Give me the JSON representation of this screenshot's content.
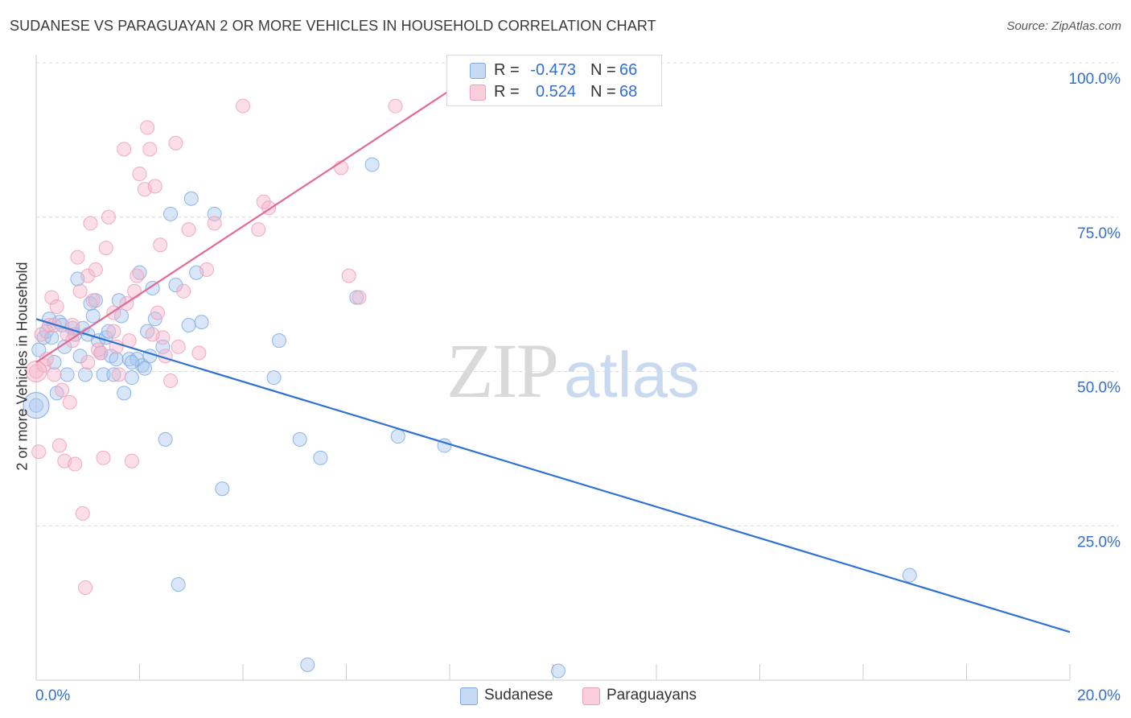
{
  "title": "SUDANESE VS PARAGUAYAN 2 OR MORE VEHICLES IN HOUSEHOLD CORRELATION CHART",
  "source": "Source: ZipAtlas.com",
  "watermark": {
    "zip": "ZIP",
    "atlas": "atlas"
  },
  "legend": {
    "rows": [
      {
        "r_label": "R =",
        "r_value": "-0.473",
        "n_label": "N =",
        "n_value": "66",
        "color": "#a9c8ef"
      },
      {
        "r_label": "R =",
        "r_value": "0.524",
        "n_label": "N =",
        "n_value": "68",
        "color": "#f7b6c9"
      }
    ]
  },
  "bottom_legend": [
    {
      "label": "Sudanese",
      "color": "#a9c8ef"
    },
    {
      "label": "Paraguayans",
      "color": "#f7b6c9"
    }
  ],
  "colors": {
    "blue_line": "#2f72d2",
    "pink_line": "#e46a94",
    "blue_fill": "#a9c8ef",
    "pink_fill": "#f7b6c9",
    "tick_label": "#2f6fd6",
    "grid": "#dcdcdc"
  },
  "chart_data": {
    "type": "scatter",
    "title": "SUDANESE VS PARAGUAYAN 2 OR MORE VEHICLES IN HOUSEHOLD CORRELATION CHART",
    "xlabel": "",
    "ylabel": "2 or more Vehicles in Household",
    "xlim": [
      0,
      20
    ],
    "ylim": [
      0,
      100
    ],
    "x_tick_labels": [
      "0.0%",
      "20.0%"
    ],
    "y_ticks": [
      25,
      50,
      75,
      100
    ],
    "y_tick_labels": [
      "25.0%",
      "50.0%",
      "75.0%",
      "100.0%"
    ],
    "series": [
      {
        "name": "Sudanese",
        "r": -0.473,
        "n": 66,
        "trend": {
          "x": [
            0,
            20
          ],
          "y": [
            58.5,
            7.8
          ]
        },
        "points": [
          [
            0.05,
            53.5
          ],
          [
            0.15,
            55.5
          ],
          [
            0.2,
            56.5
          ],
          [
            0.25,
            58.5
          ],
          [
            0.3,
            55.5
          ],
          [
            0.35,
            51.5
          ],
          [
            0.4,
            46.5
          ],
          [
            0.45,
            58
          ],
          [
            0.5,
            57.5
          ],
          [
            0.55,
            54
          ],
          [
            0.6,
            49.5
          ],
          [
            0.7,
            57
          ],
          [
            0.75,
            56
          ],
          [
            0.8,
            65
          ],
          [
            0.85,
            52.5
          ],
          [
            0.9,
            57
          ],
          [
            0.95,
            49.5
          ],
          [
            1.0,
            56
          ],
          [
            1.05,
            61
          ],
          [
            1.1,
            59
          ],
          [
            1.15,
            61.5
          ],
          [
            1.2,
            55
          ],
          [
            1.25,
            53
          ],
          [
            1.3,
            49.5
          ],
          [
            1.35,
            55.5
          ],
          [
            1.4,
            56.5
          ],
          [
            1.45,
            52.5
          ],
          [
            1.5,
            49.5
          ],
          [
            1.55,
            52
          ],
          [
            1.6,
            61.5
          ],
          [
            1.65,
            59
          ],
          [
            1.7,
            46.5
          ],
          [
            1.8,
            52
          ],
          [
            1.85,
            49
          ],
          [
            1.95,
            52
          ],
          [
            2.0,
            66
          ],
          [
            2.05,
            51
          ],
          [
            2.1,
            50.5
          ],
          [
            2.15,
            56.5
          ],
          [
            2.2,
            52.5
          ],
          [
            2.25,
            63.5
          ],
          [
            2.3,
            58.5
          ],
          [
            2.45,
            54
          ],
          [
            2.5,
            39
          ],
          [
            2.6,
            75.5
          ],
          [
            2.7,
            64
          ],
          [
            2.95,
            57.5
          ],
          [
            3.0,
            78
          ],
          [
            3.1,
            66
          ],
          [
            3.2,
            58
          ],
          [
            3.45,
            75.5
          ],
          [
            3.6,
            31
          ],
          [
            2.75,
            15.5
          ],
          [
            4.6,
            49
          ],
          [
            4.7,
            55
          ],
          [
            5.1,
            39
          ],
          [
            5.25,
            2.5
          ],
          [
            5.5,
            36
          ],
          [
            6.2,
            62
          ],
          [
            6.5,
            83.5
          ],
          [
            7.0,
            39.5
          ],
          [
            7.9,
            38
          ],
          [
            10.1,
            1.5
          ],
          [
            16.9,
            17
          ],
          [
            0.0,
            44.5
          ],
          [
            1.85,
            51.5
          ]
        ]
      },
      {
        "name": "Paraguayans",
        "r": 0.524,
        "n": 68,
        "trend": {
          "x": [
            0,
            8
          ],
          "y": [
            51.5,
            95.5
          ]
        },
        "points": [
          [
            0.0,
            50
          ],
          [
            0.05,
            37
          ],
          [
            0.1,
            56
          ],
          [
            0.15,
            51
          ],
          [
            0.2,
            52
          ],
          [
            0.25,
            57.5
          ],
          [
            0.3,
            62
          ],
          [
            0.35,
            49.5
          ],
          [
            0.4,
            60.5
          ],
          [
            0.45,
            38
          ],
          [
            0.5,
            47
          ],
          [
            0.55,
            35.5
          ],
          [
            0.6,
            56
          ],
          [
            0.65,
            45
          ],
          [
            0.7,
            57.5
          ],
          [
            0.75,
            35
          ],
          [
            0.8,
            68.5
          ],
          [
            0.85,
            63
          ],
          [
            0.9,
            27
          ],
          [
            0.95,
            15
          ],
          [
            1.0,
            65.5
          ],
          [
            1.05,
            74
          ],
          [
            1.1,
            61.5
          ],
          [
            1.15,
            66.5
          ],
          [
            1.2,
            53.5
          ],
          [
            1.25,
            53
          ],
          [
            1.3,
            36
          ],
          [
            1.35,
            70
          ],
          [
            1.4,
            75
          ],
          [
            1.5,
            59.5
          ],
          [
            1.55,
            54
          ],
          [
            1.6,
            49.5
          ],
          [
            1.7,
            86
          ],
          [
            1.75,
            61
          ],
          [
            1.8,
            55
          ],
          [
            1.85,
            35.5
          ],
          [
            1.9,
            63
          ],
          [
            1.95,
            65.5
          ],
          [
            2.0,
            82
          ],
          [
            2.1,
            79.5
          ],
          [
            2.15,
            89.5
          ],
          [
            2.2,
            86
          ],
          [
            2.3,
            80
          ],
          [
            2.35,
            59.5
          ],
          [
            2.4,
            70.5
          ],
          [
            2.45,
            55.5
          ],
          [
            2.5,
            52.5
          ],
          [
            2.6,
            48.5
          ],
          [
            2.7,
            87
          ],
          [
            2.75,
            54
          ],
          [
            2.85,
            63
          ],
          [
            2.95,
            73
          ],
          [
            3.15,
            53
          ],
          [
            3.3,
            66.5
          ],
          [
            3.45,
            74
          ],
          [
            4.0,
            93
          ],
          [
            4.3,
            73
          ],
          [
            4.4,
            77.5
          ],
          [
            4.5,
            76.5
          ],
          [
            5.9,
            83
          ],
          [
            6.05,
            65.5
          ],
          [
            6.25,
            62
          ],
          [
            6.95,
            93
          ],
          [
            1.0,
            51.5
          ],
          [
            0.35,
            57.5
          ],
          [
            1.5,
            56.5
          ],
          [
            2.25,
            56
          ],
          [
            0.7,
            55
          ]
        ]
      }
    ]
  }
}
